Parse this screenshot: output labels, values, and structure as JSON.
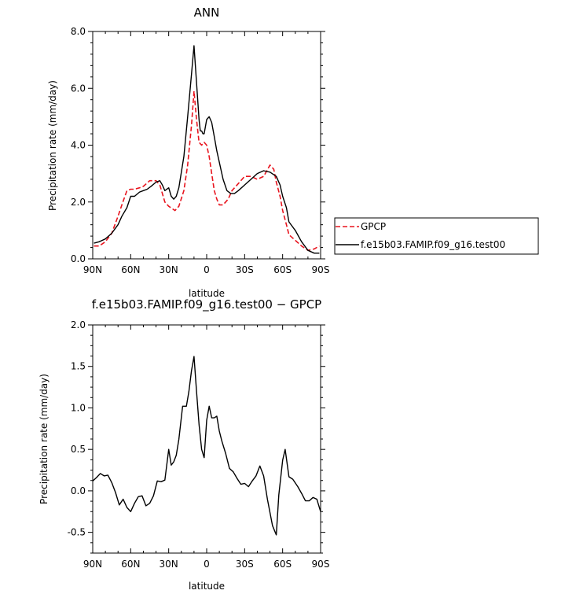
{
  "chart_data": [
    {
      "type": "line",
      "title": "ANN",
      "xlabel": "latitude",
      "ylabel": "Precipitation rate (mm/day)",
      "xlim": [
        90,
        -90
      ],
      "ylim": [
        0,
        8
      ],
      "x_ticks": [
        {
          "value": 90,
          "label": "90N"
        },
        {
          "value": 60,
          "label": "60N"
        },
        {
          "value": 30,
          "label": "30N"
        },
        {
          "value": 0,
          "label": "0"
        },
        {
          "value": -30,
          "label": "30S"
        },
        {
          "value": -60,
          "label": "60S"
        },
        {
          "value": -90,
          "label": "90S"
        }
      ],
      "y_ticks": [
        {
          "value": 0,
          "label": "0.0"
        },
        {
          "value": 2,
          "label": "2.0"
        },
        {
          "value": 4,
          "label": "4.0"
        },
        {
          "value": 6,
          "label": "6.0"
        },
        {
          "value": 8,
          "label": "8.0"
        }
      ],
      "legend": {
        "placement": "right"
      },
      "series": [
        {
          "name": "GPCP",
          "color": "#e8141e",
          "dash": "dashed",
          "x": [
            89,
            85,
            80,
            75,
            70,
            67,
            63,
            60,
            57,
            53,
            50,
            45,
            40,
            37,
            35,
            33,
            30,
            25,
            22,
            18,
            15,
            12,
            10,
            8,
            6,
            4,
            2,
            0,
            -2,
            -4,
            -6,
            -8,
            -10,
            -13,
            -17,
            -20,
            -25,
            -30,
            -35,
            -40,
            -45,
            -50,
            -53,
            -55,
            -58,
            -60,
            -63,
            -65,
            -70,
            -75,
            -80,
            -85,
            -89
          ],
          "y": [
            0.45,
            0.45,
            0.6,
            0.9,
            1.5,
            1.9,
            2.4,
            2.45,
            2.45,
            2.5,
            2.55,
            2.75,
            2.75,
            2.6,
            2.3,
            2.0,
            1.85,
            1.7,
            1.85,
            2.4,
            3.3,
            4.7,
            5.9,
            4.9,
            4.1,
            4.0,
            4.1,
            4.0,
            3.6,
            3.0,
            2.4,
            2.1,
            1.9,
            1.9,
            2.1,
            2.4,
            2.65,
            2.9,
            2.9,
            2.8,
            2.9,
            3.3,
            3.15,
            2.7,
            2.2,
            1.7,
            1.2,
            0.85,
            0.65,
            0.45,
            0.3,
            0.35,
            0.45
          ]
        },
        {
          "name": "f.e15b03.FAMIP.f09_g16.test00",
          "color": "#000000",
          "dash": "solid",
          "x": [
            89,
            85,
            80,
            75,
            70,
            67,
            63,
            60,
            57,
            53,
            50,
            47,
            44,
            40,
            37,
            35,
            33,
            30,
            28,
            26,
            24,
            22,
            18,
            15,
            12,
            10,
            8,
            6,
            5,
            4,
            3,
            2,
            0,
            -2,
            -4,
            -6,
            -8,
            -10,
            -13,
            -16,
            -19,
            -22,
            -25,
            -30,
            -35,
            -40,
            -45,
            -50,
            -55,
            -58,
            -60,
            -63,
            -65,
            -70,
            -75,
            -80,
            -85,
            -89
          ],
          "y": [
            0.55,
            0.6,
            0.7,
            0.9,
            1.2,
            1.5,
            1.8,
            2.2,
            2.2,
            2.35,
            2.4,
            2.45,
            2.55,
            2.7,
            2.75,
            2.6,
            2.4,
            2.5,
            2.2,
            2.1,
            2.2,
            2.5,
            3.6,
            5.0,
            6.5,
            7.5,
            6.2,
            4.9,
            4.5,
            4.5,
            4.4,
            4.4,
            4.9,
            5.0,
            4.8,
            4.3,
            3.8,
            3.4,
            2.8,
            2.4,
            2.3,
            2.3,
            2.4,
            2.6,
            2.8,
            3.0,
            3.1,
            3.05,
            2.9,
            2.6,
            2.2,
            1.8,
            1.3,
            1.0,
            0.6,
            0.3,
            0.2,
            0.2
          ]
        }
      ]
    },
    {
      "type": "line",
      "title": "f.e15b03.FAMIP.f09_g16.test00 − GPCP",
      "xlabel": "latitude",
      "ylabel": "Precipitation rate (mm/day)",
      "xlim": [
        90,
        -90
      ],
      "ylim": [
        -0.75,
        2.0
      ],
      "x_ticks": [
        {
          "value": 90,
          "label": "90N"
        },
        {
          "value": 60,
          "label": "60N"
        },
        {
          "value": 30,
          "label": "30N"
        },
        {
          "value": 0,
          "label": "0"
        },
        {
          "value": -30,
          "label": "30S"
        },
        {
          "value": -60,
          "label": "60S"
        },
        {
          "value": -90,
          "label": "90S"
        }
      ],
      "y_ticks": [
        {
          "value": -0.5,
          "label": "-0.5"
        },
        {
          "value": 0.0,
          "label": "0.0"
        },
        {
          "value": 0.5,
          "label": "0.5"
        },
        {
          "value": 1.0,
          "label": "1.0"
        },
        {
          "value": 1.5,
          "label": "1.5"
        },
        {
          "value": 2.0,
          "label": "2.0"
        }
      ],
      "series": [
        {
          "color": "#000000",
          "dash": "solid",
          "x": [
            90,
            87,
            84,
            81,
            78,
            75,
            72,
            69,
            66,
            63,
            60,
            57,
            54,
            51,
            48,
            45,
            42,
            39,
            36,
            33,
            30,
            28,
            26,
            24,
            22,
            19,
            16,
            14,
            12,
            10,
            8,
            6,
            4,
            2,
            0,
            -2,
            -4,
            -6,
            -8,
            -10,
            -12,
            -15,
            -18,
            -21,
            -24,
            -27,
            -30,
            -33,
            -36,
            -39,
            -42,
            -45,
            -48,
            -52,
            -55,
            -57,
            -60,
            -62,
            -65,
            -68,
            -72,
            -75,
            -78,
            -81,
            -84,
            -87,
            -90
          ],
          "y": [
            0.12,
            0.16,
            0.21,
            0.18,
            0.19,
            0.1,
            -0.02,
            -0.17,
            -0.1,
            -0.2,
            -0.25,
            -0.15,
            -0.07,
            -0.06,
            -0.18,
            -0.15,
            -0.06,
            0.12,
            0.11,
            0.13,
            0.5,
            0.31,
            0.35,
            0.43,
            0.62,
            1.02,
            1.02,
            1.2,
            1.45,
            1.62,
            1.2,
            0.8,
            0.5,
            0.4,
            0.85,
            1.02,
            0.88,
            0.88,
            0.9,
            0.72,
            0.6,
            0.45,
            0.27,
            0.23,
            0.15,
            0.08,
            0.09,
            0.05,
            0.12,
            0.18,
            0.3,
            0.18,
            -0.1,
            -0.42,
            -0.53,
            -0.05,
            0.37,
            0.5,
            0.17,
            0.14,
            0.05,
            -0.03,
            -0.12,
            -0.12,
            -0.08,
            -0.1,
            -0.25
          ]
        }
      ]
    }
  ]
}
